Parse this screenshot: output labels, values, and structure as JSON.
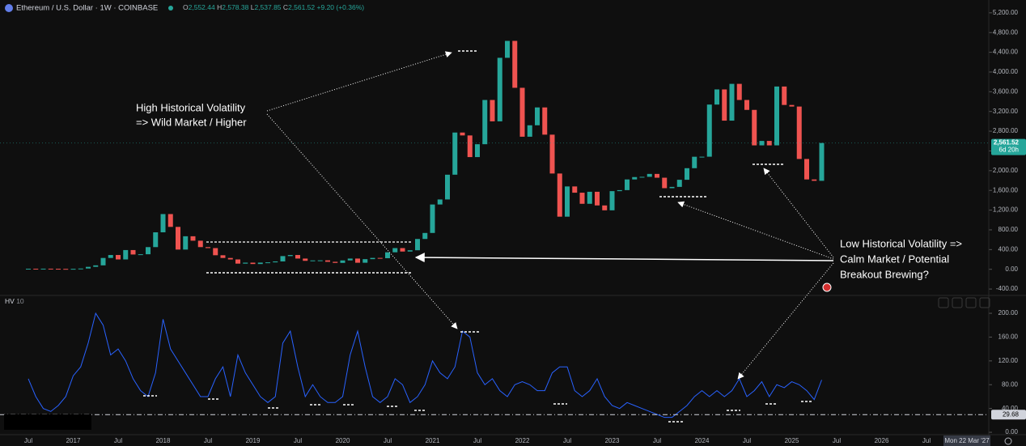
{
  "chart_data": [
    {
      "type": "candlestick",
      "title": "Ethereum / U.S. Dollar · 1W · COINBASE",
      "quote": [
        {
          "key": "O",
          "text": "2,552.44"
        },
        {
          "key": "H",
          "text": "2,578.38"
        },
        {
          "key": "L",
          "text": "2,537.85"
        },
        {
          "key": "C",
          "text": "2,561.52"
        }
      ],
      "change": "+9.20 (+0.36%)",
      "categories": [
        "Jul",
        null,
        null,
        null,
        null,
        null,
        "2017",
        null,
        null,
        null,
        null,
        null,
        "Jul",
        null,
        null,
        null,
        null,
        null,
        "2018",
        null,
        null,
        null,
        null,
        null,
        "Jul",
        null,
        null,
        null,
        null,
        null,
        "2019",
        null,
        null,
        null,
        null,
        null,
        "Jul",
        null,
        null,
        null,
        null,
        null,
        "2020",
        null,
        null,
        null,
        null,
        null,
        "Jul",
        null,
        null,
        null,
        null,
        null,
        "2021",
        null,
        null,
        null,
        null,
        null,
        "Jul",
        null,
        null,
        null,
        null,
        null,
        "2022",
        null,
        null,
        null,
        null,
        null,
        "Jul",
        null,
        null,
        null,
        null,
        null,
        "2023",
        null,
        null,
        null,
        null,
        null,
        "Jul",
        null,
        null,
        null,
        null,
        null,
        "2024",
        null,
        null,
        null,
        null,
        null,
        "Jul",
        null,
        null,
        null,
        null,
        null,
        "2025",
        null,
        null,
        null,
        null,
        null,
        "Jul",
        null,
        null,
        null,
        null,
        null,
        "2026",
        null,
        null,
        null,
        null,
        null,
        "Jul"
      ],
      "values": [
        12,
        11,
        13,
        11,
        9,
        8,
        10,
        16,
        50,
        80,
        230,
        290,
        200,
        390,
        300,
        305,
        450,
        750,
        1120,
        860,
        400,
        670,
        580,
        450,
        430,
        285,
        230,
        200,
        115,
        135,
        107,
        136,
        141,
        160,
        268,
        290,
        218,
        172,
        180,
        182,
        152,
        130,
        180,
        218,
        133,
        206,
        231,
        225,
        345,
        430,
        360,
        386,
        615,
        737,
        1314,
        1416,
        1918,
        2773,
        2714,
        2275,
        2536,
        3433,
        3000,
        4288,
        4631,
        3680,
        2688,
        2920,
        3282,
        2730,
        1942,
        1067,
        1680,
        1553,
        1328,
        1572,
        1295,
        1196,
        1585,
        1605,
        1822,
        1870,
        1875,
        1934,
        1857,
        1645,
        1671,
        1815,
        2050,
        2282,
        2283,
        3340,
        3647,
        3014,
        3760,
        3433,
        3232,
        2513,
        2603,
        2513,
        3706,
        3332,
        3300,
        2237,
        1822,
        1794,
        2561,
        null,
        null,
        null,
        null,
        null,
        null,
        null,
        null,
        null,
        null,
        null,
        null,
        null,
        null
      ],
      "up_color": "#26a69a",
      "down_color": "#ef5350",
      "ylim": [
        -530,
        5460
      ],
      "yticks": [
        {
          "value": 5200,
          "label": "5,200.00"
        },
        {
          "value": 4800,
          "label": "4,800.00"
        },
        {
          "value": 4400,
          "label": "4,400.00"
        },
        {
          "value": 4000,
          "label": "4,000.00"
        },
        {
          "value": 3600,
          "label": "3,600.00"
        },
        {
          "value": 3200,
          "label": "3,200.00"
        },
        {
          "value": 2800,
          "label": "2,800.00"
        },
        {
          "value": 2400,
          "label": "2,400.00"
        },
        {
          "value": 2000,
          "label": "2,000.00"
        },
        {
          "value": 1600,
          "label": "1,600.00"
        },
        {
          "value": 1200,
          "label": "1,200.00"
        },
        {
          "value": 800,
          "label": "800.00"
        },
        {
          "value": 400,
          "label": "400.00"
        },
        {
          "value": 0,
          "label": "0.00"
        },
        {
          "value": -400,
          "label": "-400.00"
        }
      ],
      "grid": false,
      "last_price": {
        "value": 2561.52,
        "label": "2,561.52"
      },
      "countdown": "6d 20h"
    },
    {
      "type": "line",
      "title": "HV",
      "subtitle": "10",
      "color": "#2962ff",
      "values": [
        90,
        60,
        40,
        35,
        45,
        60,
        95,
        110,
        150,
        200,
        180,
        130,
        140,
        120,
        90,
        70,
        60,
        100,
        190,
        140,
        120,
        100,
        80,
        60,
        60,
        90,
        110,
        60,
        130,
        100,
        80,
        60,
        50,
        60,
        150,
        170,
        110,
        60,
        80,
        60,
        50,
        50,
        60,
        130,
        170,
        110,
        60,
        50,
        60,
        90,
        80,
        50,
        60,
        80,
        120,
        100,
        90,
        110,
        170,
        160,
        100,
        80,
        90,
        70,
        60,
        80,
        85,
        80,
        70,
        70,
        100,
        110,
        110,
        70,
        60,
        70,
        90,
        60,
        45,
        40,
        50,
        45,
        40,
        35,
        30,
        25,
        25,
        35,
        45,
        60,
        70,
        60,
        70,
        60,
        70,
        90,
        60,
        70,
        85,
        60,
        80,
        75,
        85,
        80,
        70,
        55,
        88,
        null,
        null,
        null,
        null,
        null,
        null,
        null,
        null,
        null,
        null,
        null,
        null,
        null,
        null
      ],
      "ylim": [
        -4,
        230
      ],
      "yticks": [
        {
          "value": 200,
          "label": "200.00"
        },
        {
          "value": 160,
          "label": "160.00"
        },
        {
          "value": 120,
          "label": "120.00"
        },
        {
          "value": 80,
          "label": "80.00"
        },
        {
          "value": 40,
          "label": "40.00"
        },
        {
          "value": 0,
          "label": "0.00"
        }
      ],
      "hline": {
        "value": 29.68,
        "label": "29.68"
      },
      "grid": false
    }
  ],
  "annotations": [
    "High Historical Volatility",
    "=> Wild Market / Higher",
    "Low Historical Volatility =>",
    "Calm Market / Potential",
    "Breakout Brewing?"
  ],
  "ui": {
    "crosshair_date": "Mon 22 Mar '27"
  }
}
